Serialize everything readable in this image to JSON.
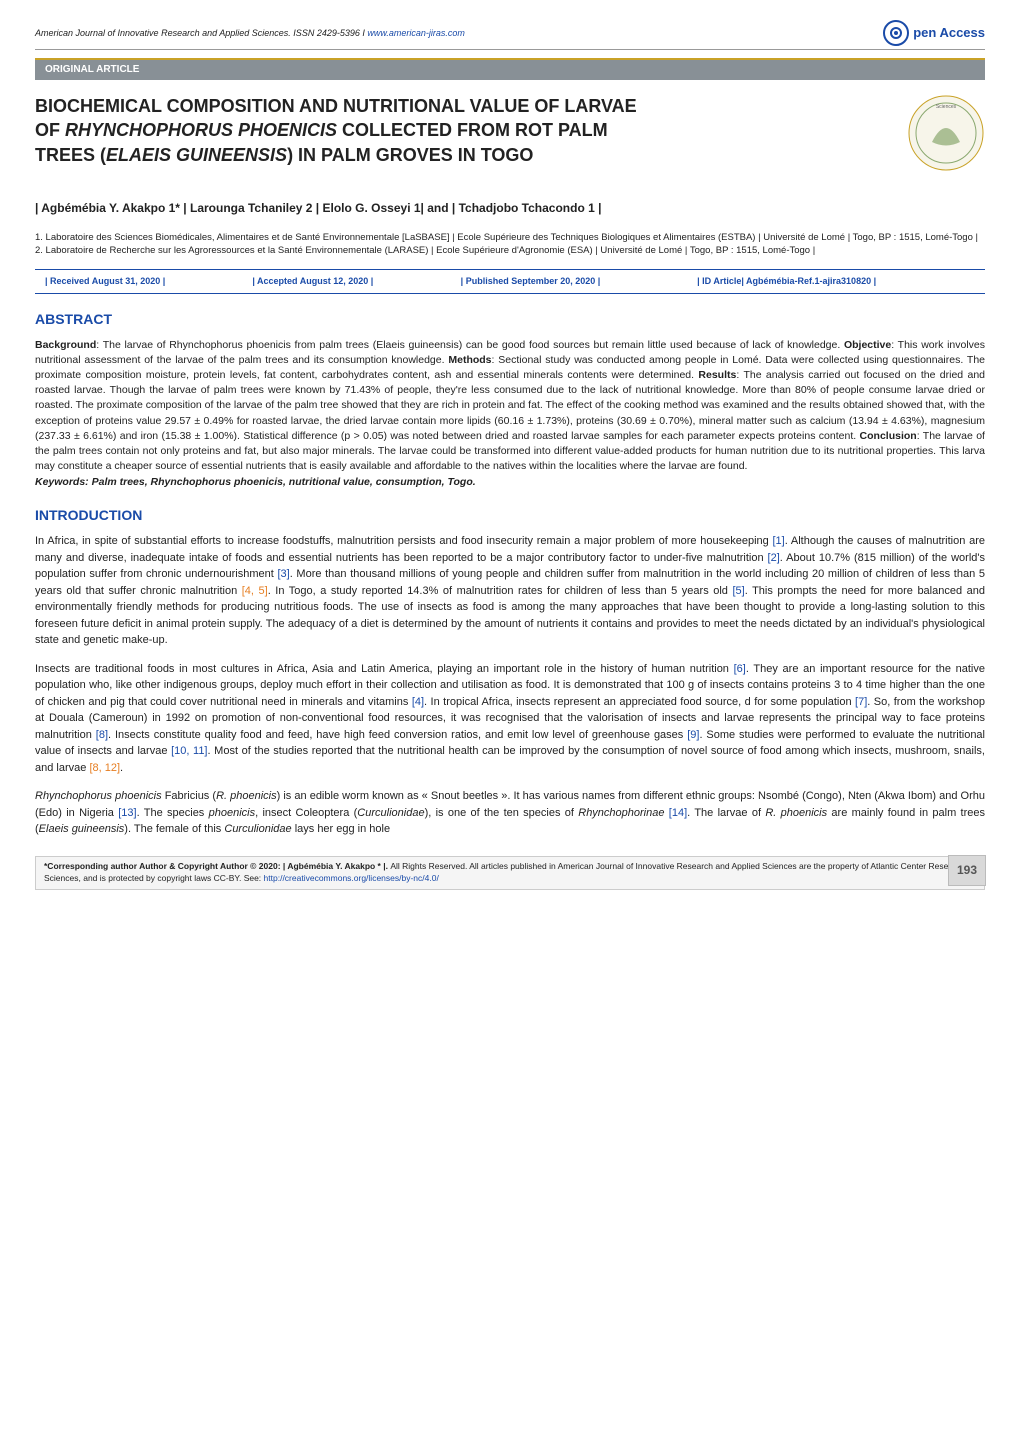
{
  "header": {
    "journal": "American Journal of Innovative Research and Applied Sciences.  ISSN 2429-5396 I",
    "url": "www.american-jiras.com",
    "open_access": "pen Access"
  },
  "section_label": "ORIGINAL ARTICLE",
  "title_parts": {
    "line1": "BIOCHEMICAL COMPOSITION AND NUTRITIONAL VALUE OF LARVAE",
    "line2_pre": "OF ",
    "line2_em": "RHYNCHOPHORUS PHOENICIS",
    "line2_post": " COLLECTED FROM ROT PALM",
    "line3_pre": "TREES (",
    "line3_em": "ELAEIS GUINEENSIS",
    "line3_post": ") IN PALM GROVES IN TOGO"
  },
  "authors": "| Agbémébia Y. Akakpo 1* | Larounga Tchaniley 2 | Elolo G. Osseyi 1| and | Tchadjobo Tchacondo 1 |",
  "affiliations": {
    "a1": "1. Laboratoire des Sciences Biomédicales, Alimentaires et de Santé Environnementale [LaSBASE] | Ecole Supérieure des Techniques Biologiques et Alimentaires (ESTBA) | Université de Lomé | Togo, BP : 1515, Lomé-Togo |",
    "a2": "2. Laboratoire de Recherche sur les Agroressources et la Santé Environnementale (LARASE) | Ecole Supérieure d'Agronomie (ESA) | Université de Lomé | Togo, BP : 1515, Lomé-Togo |"
  },
  "meta": {
    "received": "| Received August 31, 2020 |",
    "accepted": "| Accepted August 12, 2020 |",
    "published": "| Published September 20, 2020 |",
    "id": "| ID Article| Agbémébia-Ref.1-ajira310820 |"
  },
  "abstract_heading": "ABSTRACT",
  "abstract_text": {
    "bg_label": "Background",
    "bg": ": The larvae of Rhynchophorus phoenicis from palm trees (Elaeis guineensis) can be good food sources but remain little used because of lack of knowledge. ",
    "obj_label": "Objective",
    "obj": ": This work involves nutritional assessment of the larvae of the palm trees and its consumption knowledge. ",
    "meth_label": "Methods",
    "meth": ": Sectional study was conducted among people in Lomé. Data were collected using questionnaires. The proximate composition moisture, protein levels, fat content, carbohydrates content, ash and essential minerals contents were determined. ",
    "res_label": "Results",
    "res": ": The analysis carried out focused on the dried and roasted larvae. Though the larvae of palm trees were known by 71.43% of people, they're less consumed due to the lack of nutritional knowledge. More than 80% of people consume larvae dried or roasted. The proximate composition of the larvae of the palm tree showed that they are rich in protein and fat. The effect of the cooking method was examined and the results obtained showed that, with the exception of proteins value 29.57 ± 0.49% for roasted larvae, the dried larvae contain more lipids (60.16 ± 1.73%), proteins (30.69 ± 0.70%), mineral matter such as calcium (13.94 ± 4.63%), magnesium (237.33 ± 6.61%) and iron (15.38 ± 1.00%). Statistical difference (p > 0.05) was noted between dried and roasted larvae samples for each parameter expects proteins content. ",
    "con_label": "Conclusion",
    "con": ": The larvae of the palm trees contain not only proteins and fat, but also major minerals. The larvae could be transformed into different value-added products for human nutrition due to its nutritional properties. This larva may constitute a cheaper source of essential nutrients that is easily available and affordable to the natives within the localities where the larvae are found."
  },
  "keywords": "Keywords: Palm trees, Rhynchophorus phoenicis, nutritional value, consumption, Togo.",
  "intro_heading": "INTRODUCTION",
  "intro_p1": "In Africa, in spite of substantial efforts to increase foodstuffs, malnutrition persists and food insecurity remain a major problem of more housekeeping [1]. Although the causes of malnutrition are many and diverse, inadequate intake of foods and essential nutrients has been reported to be a major contributory factor to under-five malnutrition [2]. About 10.7% (815 million) of the world's population suffer from chronic undernourishment [3]. More than thousand millions of young people and children suffer from malnutrition in the world including 20 million of children of less than 5 years old that suffer chronic malnutrition [4, 5]. In Togo, a study reported 14.3% of malnutrition rates for children of less than 5 years old [5]. This prompts the need for more balanced and environmentally friendly methods for producing nutritious foods. The use of insects as food is among the many approaches that have been thought to provide a long-lasting solution to this foreseen future deficit in animal protein supply. The adequacy of a diet is determined by the amount of nutrients it contains and provides to meet the needs dictated by an individual's physiological state and genetic make-up.",
  "intro_p2": "Insects are traditional foods in most cultures in Africa, Asia and Latin America, playing an important role in the history of human nutrition [6]. They are an important resource for the native population who, like other indigenous groups, deploy much effort in their collection and utilisation as food. It is demonstrated that 100 g of insects contains proteins 3 to 4 time higher than the one of chicken and pig that could cover nutritional need in minerals and vitamins [4]. In tropical Africa, insects represent an appreciated food source, d for some population [7]. So, from the workshop at Douala (Cameroun) in 1992 on promotion of non-conventional food resources, it was recognised that the valorisation of insects and larvae represents the principal way to face proteins malnutrition [8]. Insects constitute quality food and feed, have high feed conversion ratios, and emit low level of greenhouse gases [9]. Some studies were performed to evaluate the nutritional value of insects and larvae [10, 11]. Most of the studies reported that the nutritional health can be improved by the consumption of novel source of food among which insects, mushroom, snails, and larvae [8, 12].",
  "intro_p3": "Rhynchophorus phoenicis Fabricius (R. phoenicis) is an edible worm known as « Snout beetles ». It has various names from different ethnic groups: Nsombé (Congo), Nten (Akwa Ibom) and Orhu (Edo) in Nigeria [13]. The species phoenicis, insect Coleoptera (Curculionidae), is one of the ten species of Rhynchophorinae [14]. The larvae of R. phoenicis are mainly found in palm trees (Elaeis guineensis). The female of this Curculionidae lays her egg in hole",
  "footer": {
    "text_pre": "*Corresponding author Author & Copyright Author © 2020: | Agbémébia Y. Akakpo * |. ",
    "text_mid": "All Rights Reserved. All articles published in American Journal of Innovative Research and Applied Sciences are the property of Atlantic Center Research Sciences, and is protected by copyright laws CC-BY. See: ",
    "link": "http://creativecommons.org/licenses/by-nc/4.0/",
    "page": "193"
  },
  "colors": {
    "link_blue": "#1a4ba8",
    "section_gray": "#889096",
    "gold_border": "#c9a227",
    "ref_orange": "#e67e22"
  }
}
